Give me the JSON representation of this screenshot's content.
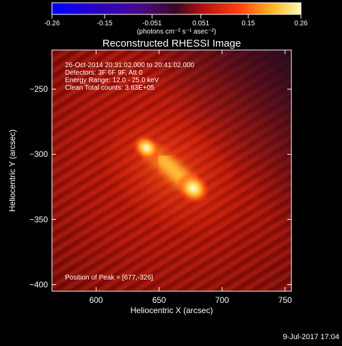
{
  "colorbar": {
    "tick_labels": [
      "-0.26",
      "-0.15",
      "-0.051",
      "0.051",
      "0.15",
      "0.26"
    ],
    "tick_values": [
      -0.26,
      -0.15,
      -0.051,
      0.051,
      0.15,
      0.26
    ],
    "range": [
      -0.26,
      0.26
    ],
    "units_label": "(photons cm⁻² s⁻¹ asec⁻²)"
  },
  "plot": {
    "title": "Reconstructed RHESSI Image",
    "annotations": [
      "26-Oct-2014 20:31:02.000 to 20:41:02.000",
      "Detectors: 3F 6F 9F, Att 0",
      "Energy Range: 12.0 - 25.0 keV",
      "Clean    Total counts: 3.63E+05"
    ],
    "peak_label": "Position of Peak = [677,-326]",
    "xlabel": "Heliocentric X (arcsec)",
    "ylabel": "Heliocentric Y (arcsec)",
    "xlim": [
      565,
      755
    ],
    "ylim": [
      -405,
      -220
    ],
    "x_ticks": [
      600,
      650,
      700,
      750
    ],
    "y_ticks": [
      -250,
      -300,
      -350,
      -400
    ],
    "x_tick_labels": [
      "600",
      "650",
      "700",
      "750"
    ],
    "y_tick_labels": [
      "−250",
      "−300",
      "−350",
      "−400"
    ],
    "sources": [
      {
        "x": 640,
        "y": -295,
        "intensity": 0.26
      },
      {
        "x": 677,
        "y": -326,
        "intensity": 0.26
      }
    ]
  },
  "footer": {
    "date": "9-Jul-2017 17:04"
  }
}
